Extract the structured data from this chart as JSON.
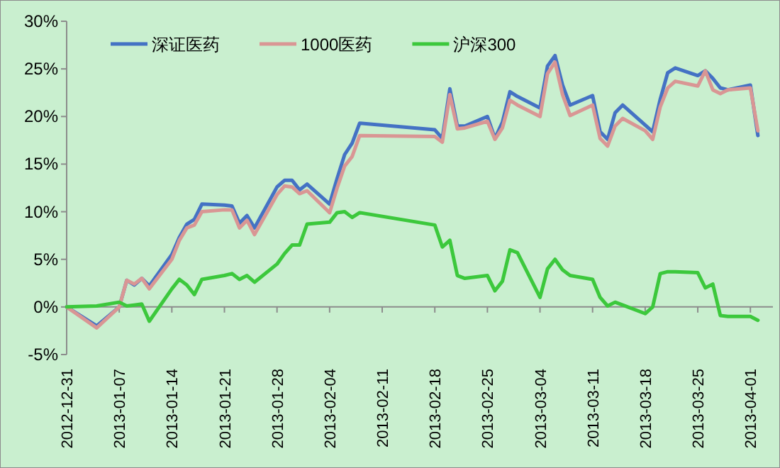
{
  "chart_data": {
    "type": "line",
    "x": [
      "2012-12-31",
      "2013-01-04",
      "2013-01-07",
      "2013-01-08",
      "2013-01-09",
      "2013-01-10",
      "2013-01-11",
      "2013-01-14",
      "2013-01-15",
      "2013-01-16",
      "2013-01-17",
      "2013-01-18",
      "2013-01-21",
      "2013-01-22",
      "2013-01-23",
      "2013-01-24",
      "2013-01-25",
      "2013-01-28",
      "2013-01-29",
      "2013-01-30",
      "2013-01-31",
      "2013-02-01",
      "2013-02-04",
      "2013-02-05",
      "2013-02-06",
      "2013-02-07",
      "2013-02-08",
      "2013-02-18",
      "2013-02-19",
      "2013-02-20",
      "2013-02-21",
      "2013-02-22",
      "2013-02-25",
      "2013-02-26",
      "2013-02-27",
      "2013-02-28",
      "2013-03-01",
      "2013-03-04",
      "2013-03-05",
      "2013-03-06",
      "2013-03-07",
      "2013-03-08",
      "2013-03-11",
      "2013-03-12",
      "2013-03-13",
      "2013-03-14",
      "2013-03-15",
      "2013-03-18",
      "2013-03-19",
      "2013-03-20",
      "2013-03-21",
      "2013-03-22",
      "2013-03-25",
      "2013-03-26",
      "2013-03-27",
      "2013-03-28",
      "2013-03-29",
      "2013-04-01",
      "2013-04-02"
    ],
    "series": [
      {
        "name": "深证医药",
        "color": "#4472c4",
        "values": [
          0,
          -2.0,
          0.0,
          2.8,
          2.3,
          3.0,
          2.2,
          5.5,
          7.3,
          8.7,
          9.2,
          10.8,
          10.7,
          10.6,
          8.8,
          9.6,
          8.3,
          12.6,
          13.3,
          13.3,
          12.3,
          12.9,
          10.8,
          13.5,
          16.0,
          17.2,
          19.3,
          18.6,
          17.7,
          22.9,
          19.0,
          19.0,
          20.0,
          17.7,
          19.4,
          22.6,
          22.1,
          20.9,
          25.3,
          26.4,
          23.3,
          21.2,
          22.2,
          18.4,
          17.6,
          20.4,
          21.2,
          19.1,
          18.4,
          21.8,
          24.6,
          25.1,
          24.3,
          24.8,
          24.0,
          23.0,
          22.8,
          23.3,
          18.0
        ]
      },
      {
        "name": "1000医药",
        "color": "#d99694",
        "values": [
          0,
          -2.2,
          0.0,
          2.8,
          2.4,
          3.0,
          1.9,
          5.0,
          7.0,
          8.3,
          8.6,
          10.0,
          10.2,
          10.2,
          8.3,
          9.1,
          7.6,
          11.8,
          12.7,
          12.6,
          11.9,
          12.2,
          9.9,
          12.5,
          14.8,
          15.8,
          18.0,
          17.9,
          17.3,
          22.3,
          18.7,
          18.8,
          19.5,
          17.6,
          18.8,
          21.7,
          21.2,
          20.0,
          24.5,
          25.7,
          22.3,
          20.1,
          21.2,
          17.7,
          16.9,
          19.0,
          19.8,
          18.5,
          17.6,
          21.0,
          23.0,
          23.7,
          23.2,
          24.8,
          22.8,
          22.4,
          22.8,
          23.0,
          18.5
        ]
      },
      {
        "name": "沪深300",
        "color": "#3cc83c",
        "values": [
          0,
          0.1,
          0.5,
          0.1,
          0.2,
          0.3,
          -1.5,
          1.9,
          2.9,
          2.3,
          1.3,
          2.9,
          3.3,
          3.5,
          2.9,
          3.3,
          2.6,
          4.5,
          5.6,
          6.5,
          6.5,
          8.7,
          8.9,
          9.9,
          10.0,
          9.4,
          9.9,
          8.6,
          6.3,
          7.0,
          3.3,
          3.0,
          3.3,
          1.7,
          2.7,
          6.0,
          5.7,
          1.0,
          4.0,
          5.0,
          3.9,
          3.3,
          2.9,
          1.0,
          0.1,
          0.5,
          0.2,
          -0.7,
          0.0,
          3.5,
          3.7,
          3.7,
          3.6,
          2.0,
          2.4,
          -0.9,
          -1.0,
          -1.0,
          -1.4
        ]
      }
    ],
    "xlim": [
      "2012-12-31",
      "2013-04-04"
    ],
    "xticks": [
      "2012-12-31",
      "2013-01-07",
      "2013-01-14",
      "2013-01-21",
      "2013-01-28",
      "2013-02-04",
      "2013-02-11",
      "2013-02-18",
      "2013-02-25",
      "2013-03-04",
      "2013-03-11",
      "2013-03-18",
      "2013-03-25",
      "2013-04-01"
    ],
    "ylim": [
      -5,
      30
    ],
    "yticks": [
      {
        "value": -5,
        "label": "-5%"
      },
      {
        "value": 0,
        "label": "0%"
      },
      {
        "value": 5,
        "label": "5%"
      },
      {
        "value": 10,
        "label": "10%"
      },
      {
        "value": 15,
        "label": "15%"
      },
      {
        "value": 20,
        "label": "20%"
      },
      {
        "value": 25,
        "label": "25%"
      },
      {
        "value": 30,
        "label": "30%"
      }
    ],
    "legend": "top",
    "marker": "none",
    "line_style": "solid"
  }
}
